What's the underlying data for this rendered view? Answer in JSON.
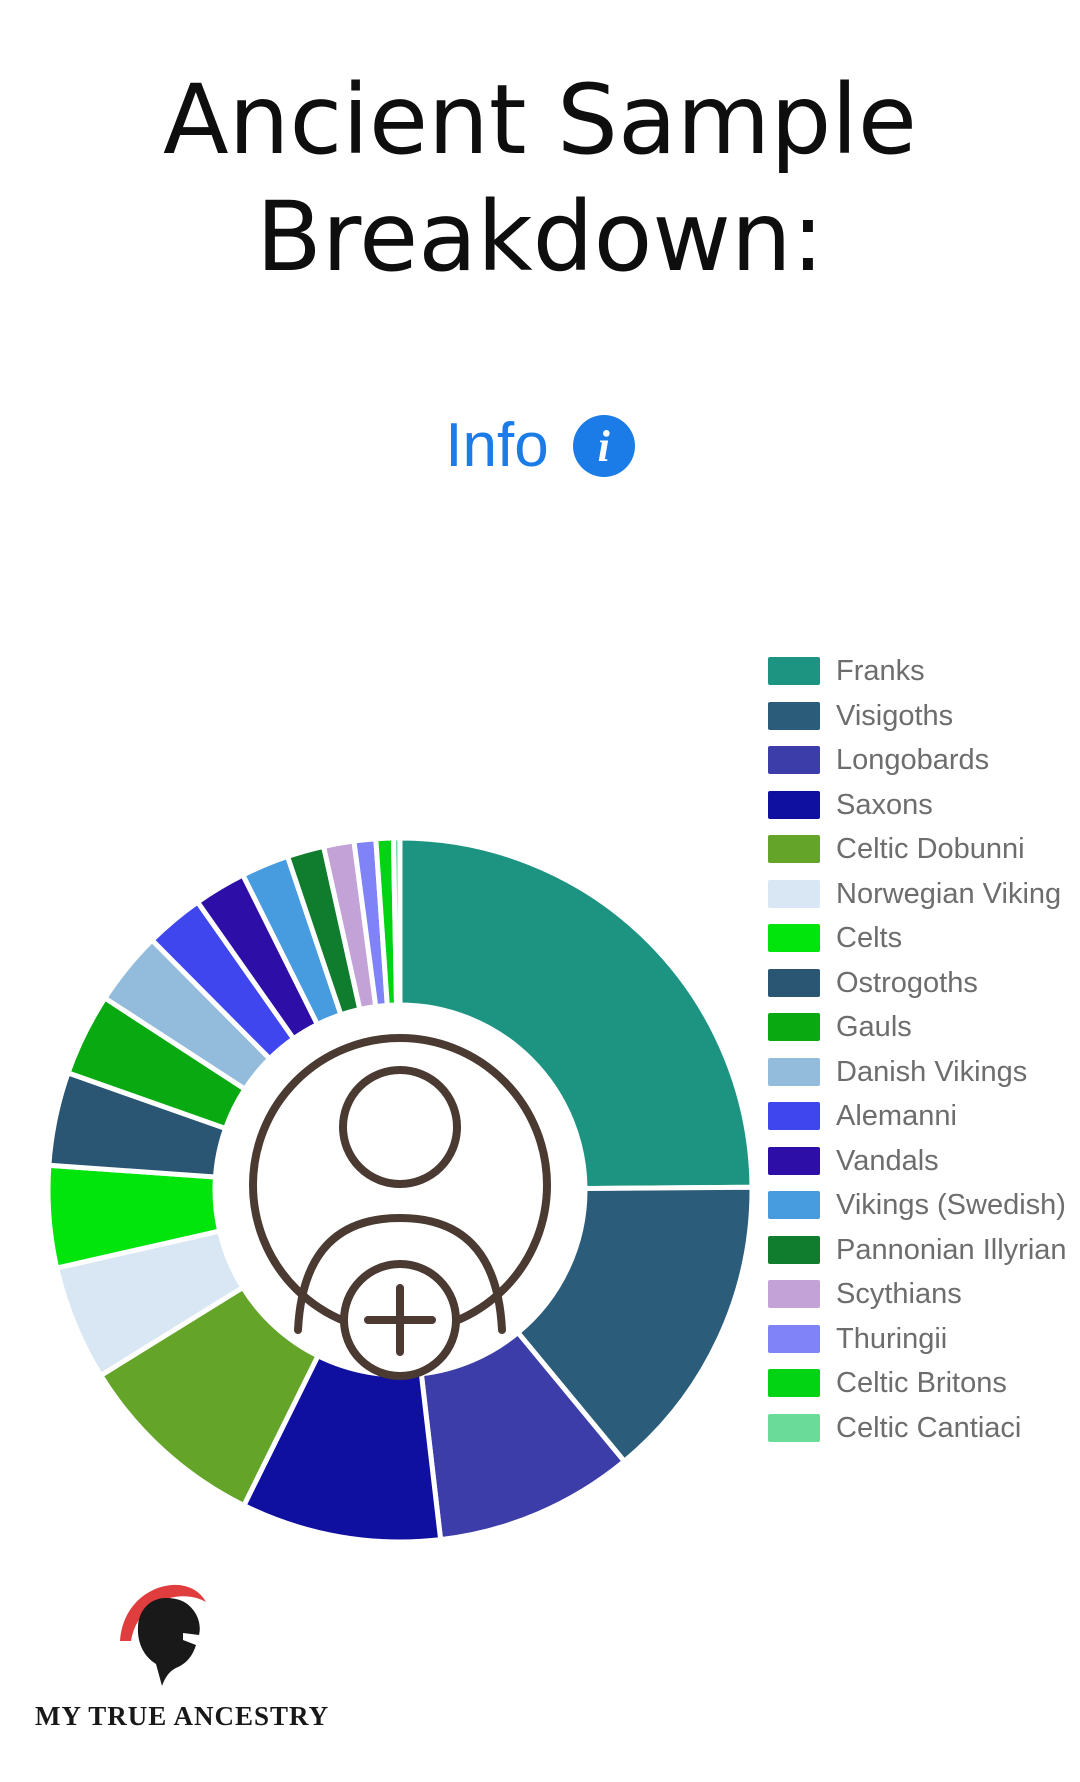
{
  "page": {
    "title_line1": "Ancient Sample",
    "title_line2": "Breakdown:",
    "background_color": "#ffffff"
  },
  "info": {
    "label": "Info",
    "icon": "info-circle-icon",
    "icon_glyph": "i",
    "color": "#1b7ce8"
  },
  "chart_data": {
    "type": "pie",
    "variant": "donut",
    "title": "Ancient Sample Breakdown",
    "legend_position": "right",
    "start_angle_deg": 0,
    "direction": "clockwise",
    "center_icon": "add-user-avatar-icon",
    "categories": [
      "Franks",
      "Visigoths",
      "Longobards",
      "Saxons",
      "Celtic Dobunni",
      "Norwegian Viking",
      "Celts",
      "Ostrogoths",
      "Gauls",
      "Danish Vikings",
      "Alemanni",
      "Vandals",
      "Vikings (Swedish)",
      "Pannonian Illyrian",
      "Scythians",
      "Thuringii",
      "Celtic Britons",
      "Celtic Cantiaci"
    ],
    "values_percent": [
      25.0,
      14.2,
      9.2,
      9.2,
      8.9,
      5.3,
      4.7,
      4.3,
      3.8,
      3.4,
      2.7,
      2.4,
      2.2,
      1.7,
      1.4,
      1.0,
      0.8,
      0.3
    ],
    "colors": [
      "#1d9482",
      "#2b5c7a",
      "#3c3da8",
      "#0f0fa0",
      "#64a428",
      "#d8e7f3",
      "#01e50d",
      "#2a5674",
      "#09a911",
      "#92bbdc",
      "#3f46ee",
      "#2d0fa7",
      "#479bdf",
      "#0f7c2e",
      "#c2a2d7",
      "#7f83f7",
      "#02d312",
      "#6adb98"
    ],
    "segment_gap_color": "#ffffff",
    "center_icon_color": "#4a3a31"
  },
  "logo": {
    "text": "MY TRUE ANCESTRY",
    "helmet_color": "#191919",
    "crest_color": "#e03e3e"
  }
}
